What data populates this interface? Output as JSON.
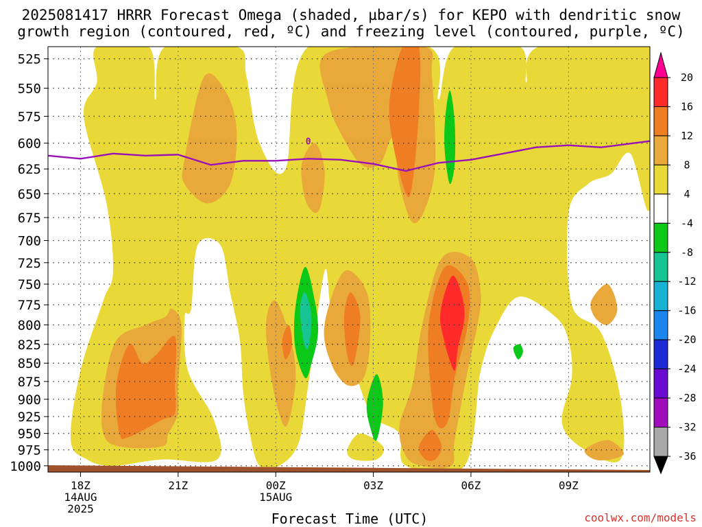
{
  "title_line1": "2025081417 HRRR Forecast Omega (shaded, µbar/s) for KEPO with dendritic snow",
  "title_line2": "growth region (contoured, red, ºC) and freezing level (contoured, purple, ºC)",
  "credit": "coolwx.com/models",
  "chart_data": {
    "type": "heatmap",
    "xlabel": "Forecast Time (UTC)",
    "x_ticks": [
      {
        "t": 1,
        "lines": [
          "18Z",
          "14AUG",
          "2025"
        ]
      },
      {
        "t": 4,
        "lines": [
          "21Z"
        ]
      },
      {
        "t": 7,
        "lines": [
          "00Z",
          "15AUG"
        ]
      },
      {
        "t": 10,
        "lines": [
          "03Z"
        ]
      },
      {
        "t": 13,
        "lines": [
          "06Z"
        ]
      },
      {
        "t": 16,
        "lines": [
          "09Z"
        ]
      }
    ],
    "xlim": [
      0,
      18.5
    ],
    "ylabel": "",
    "y_ticks": [
      525,
      550,
      575,
      600,
      625,
      650,
      675,
      700,
      725,
      750,
      775,
      800,
      825,
      850,
      875,
      900,
      925,
      950,
      975,
      1000
    ],
    "ylim_hpa": [
      515,
      1010
    ],
    "yscale": "log",
    "colorbar": {
      "ticks": [
        "20",
        "16",
        "12",
        "8",
        "4",
        "-4",
        "-8",
        "-12",
        "-16",
        "-20",
        "-24",
        "-28",
        "-32",
        "-36"
      ],
      "colors": [
        "#ff0090",
        "#ff2a2a",
        "#ef7d24",
        "#e9a83a",
        "#e8d838",
        "#ffffff",
        "#0cc818",
        "#16c494",
        "#17b2d4",
        "#1a86ee",
        "#1c2ad6",
        "#6a0ad2",
        "#a00cbc",
        "#a8a8a8",
        "#000000"
      ]
    },
    "freezing_level": {
      "label": "0",
      "label_at": [
        8,
        598
      ],
      "points": [
        [
          0,
          612
        ],
        [
          1,
          615
        ],
        [
          2,
          610
        ],
        [
          3,
          612
        ],
        [
          4,
          611
        ],
        [
          5,
          621
        ],
        [
          6,
          617
        ],
        [
          7,
          617
        ],
        [
          8,
          615
        ],
        [
          9,
          616
        ],
        [
          10,
          620
        ],
        [
          11,
          627
        ],
        [
          12,
          619
        ],
        [
          13,
          616
        ],
        [
          14,
          610
        ],
        [
          15,
          604
        ],
        [
          16,
          602
        ],
        [
          17,
          604
        ],
        [
          18.5,
          598
        ]
      ]
    },
    "omega_regions": [
      {
        "v": 6,
        "pts": [
          [
            1.5,
            515
          ],
          [
            3.1,
            515
          ],
          [
            3.3,
            560
          ],
          [
            3.6,
            515
          ],
          [
            5.8,
            515
          ],
          [
            6.1,
            540
          ],
          [
            6.5,
            600
          ],
          [
            7.3,
            625
          ],
          [
            8.0,
            515
          ],
          [
            11.7,
            515
          ],
          [
            12.0,
            560
          ],
          [
            12.5,
            515
          ],
          [
            14.5,
            515
          ],
          [
            14.7,
            545
          ],
          [
            15.1,
            515
          ],
          [
            18.5,
            515
          ],
          [
            18.5,
            665
          ],
          [
            17.9,
            610
          ],
          [
            17.3,
            630
          ],
          [
            16.6,
            640
          ],
          [
            16.0,
            670
          ],
          [
            16.1,
            775
          ],
          [
            17.0,
            810
          ],
          [
            17.6,
            900
          ],
          [
            17.6,
            990
          ],
          [
            16.5,
            975
          ],
          [
            15.8,
            935
          ],
          [
            16.1,
            870
          ],
          [
            16.0,
            820
          ],
          [
            15.6,
            790
          ],
          [
            14.5,
            765
          ],
          [
            13.8,
            800
          ],
          [
            13.3,
            860
          ],
          [
            12.8,
            1000
          ],
          [
            11.0,
            1000
          ],
          [
            10.8,
            950
          ],
          [
            10.0,
            925
          ],
          [
            9.5,
            870
          ],
          [
            9.1,
            800
          ],
          [
            8.7,
            780
          ],
          [
            8.5,
            735
          ],
          [
            8.0,
            880
          ],
          [
            7.7,
            965
          ],
          [
            7.1,
            1000
          ],
          [
            6.5,
            1000
          ],
          [
            6.2,
            950
          ],
          [
            6.0,
            890
          ],
          [
            5.9,
            820
          ],
          [
            5.6,
            760
          ],
          [
            5.3,
            705
          ],
          [
            4.6,
            705
          ],
          [
            4.4,
            780
          ],
          [
            4.2,
            790
          ],
          [
            4.3,
            860
          ],
          [
            5.1,
            930
          ],
          [
            5.2,
            990
          ],
          [
            3.5,
            990
          ],
          [
            2.0,
            1000
          ],
          [
            1.2,
            990
          ],
          [
            0.7,
            960
          ],
          [
            1.0,
            860
          ],
          [
            1.7,
            770
          ],
          [
            2.0,
            735
          ],
          [
            1.8,
            660
          ],
          [
            1.1,
            575
          ],
          [
            1.5,
            545
          ]
        ]
      },
      {
        "v": 6,
        "pts": [
          [
            9.2,
            975
          ],
          [
            9.6,
            950
          ],
          [
            10.3,
            970
          ],
          [
            10.1,
            990
          ],
          [
            9.4,
            990
          ]
        ]
      },
      {
        "v": 10,
        "pts": [
          [
            4.2,
            615
          ],
          [
            4.8,
            540
          ],
          [
            5.5,
            555
          ],
          [
            5.8,
            590
          ],
          [
            5.6,
            640
          ],
          [
            4.9,
            660
          ],
          [
            4.2,
            640
          ]
        ]
      },
      {
        "v": 10,
        "pts": [
          [
            8.4,
            525
          ],
          [
            9.5,
            515
          ],
          [
            11.6,
            515
          ],
          [
            11.8,
            540
          ],
          [
            11.9,
            620
          ],
          [
            11.6,
            665
          ],
          [
            11.2,
            680
          ],
          [
            10.8,
            640
          ],
          [
            10.6,
            595
          ],
          [
            10.2,
            620
          ],
          [
            9.6,
            620
          ],
          [
            8.9,
            585
          ],
          [
            8.6,
            560
          ]
        ]
      },
      {
        "v": 10,
        "pts": [
          [
            7.8,
            620
          ],
          [
            8.2,
            600
          ],
          [
            8.5,
            625
          ],
          [
            8.4,
            660
          ],
          [
            8.2,
            670
          ],
          [
            7.9,
            655
          ]
        ]
      },
      {
        "v": 10,
        "pts": [
          [
            6.7,
            800
          ],
          [
            7.0,
            770
          ],
          [
            7.5,
            825
          ],
          [
            7.6,
            880
          ],
          [
            7.3,
            940
          ],
          [
            6.9,
            880
          ]
        ]
      },
      {
        "v": 10,
        "pts": [
          [
            8.5,
            800
          ],
          [
            9.1,
            735
          ],
          [
            9.8,
            760
          ],
          [
            9.9,
            820
          ],
          [
            9.7,
            870
          ],
          [
            9.2,
            880
          ],
          [
            8.7,
            850
          ]
        ]
      },
      {
        "v": 10,
        "pts": [
          [
            11.5,
            800
          ],
          [
            12.1,
            720
          ],
          [
            13.0,
            720
          ],
          [
            13.3,
            760
          ],
          [
            13.2,
            800
          ],
          [
            12.9,
            860
          ],
          [
            12.5,
            960
          ],
          [
            12.4,
            1000
          ],
          [
            11.5,
            1000
          ],
          [
            11.0,
            985
          ],
          [
            10.8,
            940
          ],
          [
            11.2,
            880
          ]
        ]
      },
      {
        "v": 10,
        "pts": [
          [
            16.7,
            770
          ],
          [
            17.2,
            750
          ],
          [
            17.5,
            780
          ],
          [
            17.2,
            800
          ],
          [
            16.8,
            790
          ]
        ]
      },
      {
        "v": 10,
        "pts": [
          [
            16.5,
            975
          ],
          [
            17.2,
            960
          ],
          [
            17.7,
            980
          ],
          [
            17.3,
            990
          ],
          [
            16.8,
            990
          ]
        ]
      },
      {
        "v": 10,
        "pts": [
          [
            1.7,
            890
          ],
          [
            2.1,
            820
          ],
          [
            3.0,
            800
          ],
          [
            3.6,
            790
          ],
          [
            3.8,
            780
          ],
          [
            4.1,
            800
          ],
          [
            4.0,
            880
          ],
          [
            4.0,
            920
          ],
          [
            3.7,
            950
          ],
          [
            3.5,
            970
          ],
          [
            2.2,
            970
          ],
          [
            1.7,
            950
          ]
        ]
      },
      {
        "v": 14,
        "pts": [
          [
            10.5,
            560
          ],
          [
            10.9,
            515
          ],
          [
            11.4,
            515
          ],
          [
            11.4,
            570
          ],
          [
            11.2,
            640
          ],
          [
            11.0,
            650
          ],
          [
            10.6,
            600
          ]
        ]
      },
      {
        "v": 14,
        "pts": [
          [
            7.2,
            820
          ],
          [
            7.4,
            800
          ],
          [
            7.5,
            825
          ],
          [
            7.3,
            845
          ]
        ]
      },
      {
        "v": 14,
        "pts": [
          [
            9.1,
            790
          ],
          [
            9.3,
            760
          ],
          [
            9.6,
            790
          ],
          [
            9.4,
            850
          ],
          [
            9.2,
            840
          ]
        ]
      },
      {
        "v": 14,
        "pts": [
          [
            11.7,
            800
          ],
          [
            12.2,
            730
          ],
          [
            12.9,
            750
          ],
          [
            12.9,
            800
          ],
          [
            12.5,
            870
          ],
          [
            12.3,
            930
          ],
          [
            12.0,
            940
          ],
          [
            11.8,
            900
          ]
        ]
      },
      {
        "v": 14,
        "pts": [
          [
            11.4,
            970
          ],
          [
            11.8,
            945
          ],
          [
            12.1,
            970
          ],
          [
            11.9,
            990
          ],
          [
            11.6,
            990
          ]
        ]
      },
      {
        "v": 14,
        "pts": [
          [
            2.1,
            880
          ],
          [
            2.5,
            825
          ],
          [
            2.9,
            850
          ],
          [
            3.3,
            840
          ],
          [
            3.9,
            815
          ],
          [
            3.9,
            880
          ],
          [
            3.9,
            920
          ],
          [
            3.5,
            930
          ],
          [
            2.5,
            955
          ],
          [
            2.2,
            950
          ]
        ]
      },
      {
        "v": 18,
        "pts": [
          [
            12.05,
            790
          ],
          [
            12.2,
            760
          ],
          [
            12.45,
            740
          ],
          [
            12.7,
            760
          ],
          [
            12.8,
            790
          ],
          [
            12.6,
            830
          ],
          [
            12.5,
            860
          ],
          [
            12.3,
            840
          ],
          [
            12.15,
            815
          ]
        ]
      },
      {
        "v": -6,
        "pts": [
          [
            7.6,
            780
          ],
          [
            7.9,
            730
          ],
          [
            8.2,
            770
          ],
          [
            8.3,
            810
          ],
          [
            8.1,
            850
          ],
          [
            7.9,
            870
          ],
          [
            7.6,
            830
          ]
        ]
      },
      {
        "v": -10,
        "pts": [
          [
            7.75,
            780
          ],
          [
            7.9,
            760
          ],
          [
            8.1,
            790
          ],
          [
            8.0,
            830
          ],
          [
            7.85,
            820
          ]
        ]
      },
      {
        "v": -6,
        "pts": [
          [
            9.8,
            905
          ],
          [
            10.1,
            865
          ],
          [
            10.3,
            905
          ],
          [
            10.1,
            960
          ],
          [
            9.9,
            940
          ]
        ]
      },
      {
        "v": -6,
        "pts": [
          [
            12.2,
            580
          ],
          [
            12.35,
            552
          ],
          [
            12.5,
            580
          ],
          [
            12.5,
            620
          ],
          [
            12.35,
            640
          ],
          [
            12.2,
            610
          ]
        ]
      },
      {
        "v": -6,
        "pts": [
          [
            14.3,
            830
          ],
          [
            14.5,
            825
          ],
          [
            14.6,
            835
          ],
          [
            14.45,
            845
          ]
        ]
      }
    ]
  }
}
